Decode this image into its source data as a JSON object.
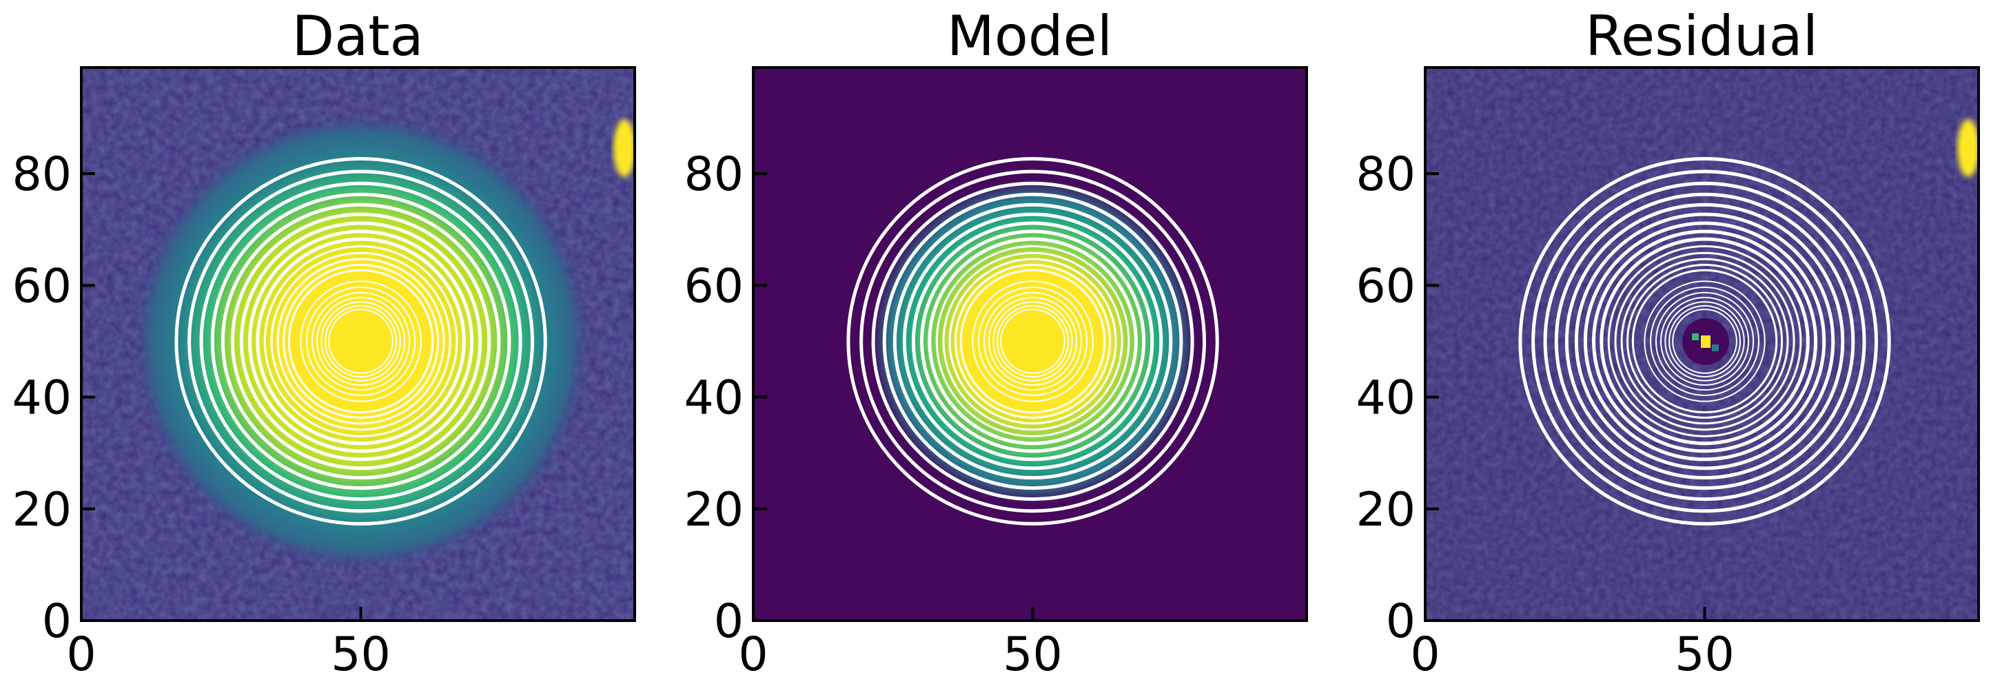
{
  "figure": {
    "panels": [
      "Data",
      "Model",
      "Residual"
    ]
  },
  "colors": {
    "background_dark": "#46085c",
    "mid_teal": "#2a788e",
    "green": "#35b779",
    "yellow": "#fde725",
    "contour": "#ffffff"
  },
  "chart_data": [
    {
      "type": "heatmap",
      "title": "Data",
      "xlabel": "",
      "ylabel": "",
      "xlim": [
        0,
        99
      ],
      "ylim": [
        0,
        99
      ],
      "x_ticks": [
        "0",
        "50"
      ],
      "y_ticks": [
        "0",
        "20",
        "40",
        "60",
        "80"
      ],
      "colormap": "viridis",
      "image": "galaxy image: bright central source near (50, 50) with smooth radial falloff, noisy background, bright compact source at upper right edge near (98, 85)",
      "isophote_center": [
        50,
        50
      ],
      "isophote_max_radius": 33,
      "contour_count": 14,
      "grid": false
    },
    {
      "type": "heatmap",
      "title": "Model",
      "xlabel": "",
      "ylabel": "",
      "xlim": [
        0,
        99
      ],
      "ylim": [
        0,
        99
      ],
      "x_ticks": [
        "0",
        "50"
      ],
      "y_ticks": [
        "0",
        "20",
        "40",
        "60",
        "80"
      ],
      "colormap": "viridis",
      "image": "model of central source near (50, 50) with smooth radial profile, uniform dark background",
      "isophote_center": [
        50,
        50
      ],
      "isophote_max_radius": 33,
      "contour_count": 14,
      "grid": false
    },
    {
      "type": "heatmap",
      "title": "Residual",
      "xlabel": "",
      "ylabel": "",
      "xlim": [
        0,
        99
      ],
      "ylim": [
        0,
        99
      ],
      "x_ticks": [
        "0",
        "50"
      ],
      "y_ticks": [
        "0",
        "20",
        "40",
        "60",
        "80"
      ],
      "colormap": "viridis",
      "image": "residual: noisy dark background with small bright spot at center (50, 50) and bright compact source at upper right edge near (98, 85)",
      "isophote_center": [
        50,
        50
      ],
      "isophote_max_radius": 33,
      "contour_count": 14,
      "grid": false
    }
  ]
}
